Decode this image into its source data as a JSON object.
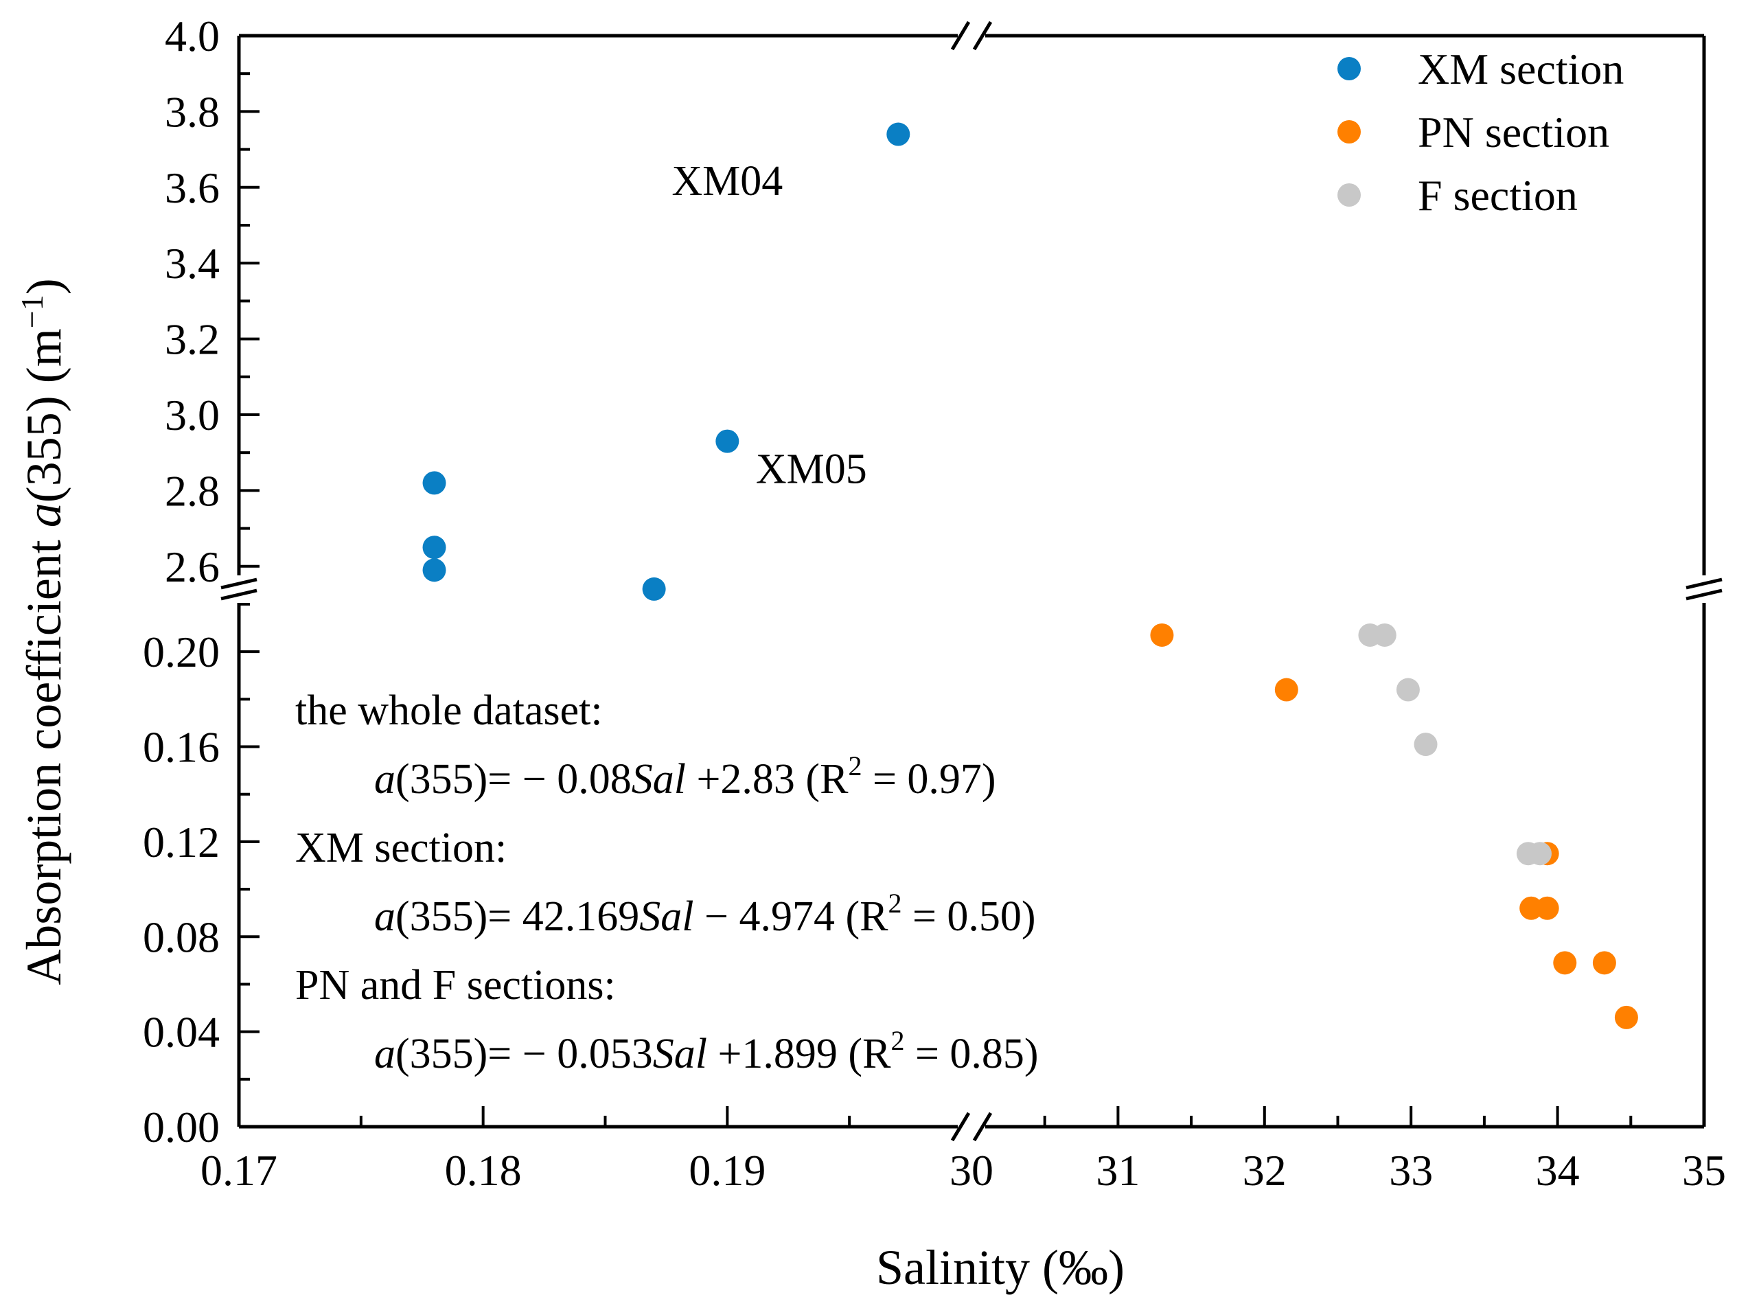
{
  "chart_data": {
    "type": "scatter",
    "title": "",
    "xlabel": "Salinity (‰)",
    "ylabel": {
      "prefix": "Absorption coefficient ",
      "italic": "a",
      "mid": "(355) (m",
      "sup": "−1",
      "suffix": ")"
    },
    "x_axis": {
      "broken": true,
      "segment_low": {
        "range": [
          0.17,
          0.2
        ],
        "ticks": [
          "0.17",
          "0.18",
          "0.19"
        ]
      },
      "segment_high": {
        "range": [
          30,
          35
        ],
        "ticks": [
          "30",
          "31",
          "32",
          "33",
          "34",
          "35"
        ]
      }
    },
    "y_axis": {
      "broken": true,
      "segment_low": {
        "range": [
          0.0,
          0.22
        ],
        "ticks": [
          "0.00",
          "0.04",
          "0.08",
          "0.12",
          "0.16",
          "0.20"
        ]
      },
      "segment_high": {
        "range": [
          2.5,
          4.0
        ],
        "ticks": [
          "2.6",
          "2.8",
          "3.0",
          "3.2",
          "3.4",
          "3.6",
          "3.8",
          "4.0"
        ]
      }
    },
    "series": [
      {
        "name": "XM section",
        "color": "#0a7fc4",
        "points": [
          {
            "x": 0.178,
            "y": 2.82
          },
          {
            "x": 0.178,
            "y": 2.65
          },
          {
            "x": 0.178,
            "y": 2.59
          },
          {
            "x": 0.187,
            "y": 2.54
          },
          {
            "x": 0.19,
            "y": 2.93
          },
          {
            "x": 0.197,
            "y": 3.74
          }
        ]
      },
      {
        "name": "PN section",
        "color": "#ff8000",
        "points": [
          {
            "x": 31.3,
            "y": 0.207
          },
          {
            "x": 32.15,
            "y": 0.184
          },
          {
            "x": 33.93,
            "y": 0.115
          },
          {
            "x": 33.82,
            "y": 0.092
          },
          {
            "x": 33.93,
            "y": 0.092
          },
          {
            "x": 34.05,
            "y": 0.069
          },
          {
            "x": 34.32,
            "y": 0.069
          },
          {
            "x": 34.47,
            "y": 0.046
          }
        ]
      },
      {
        "name": "F section",
        "color": "#c8c8c8",
        "points": [
          {
            "x": 32.72,
            "y": 0.207
          },
          {
            "x": 32.82,
            "y": 0.207
          },
          {
            "x": 32.98,
            "y": 0.184
          },
          {
            "x": 33.1,
            "y": 0.161
          },
          {
            "x": 33.8,
            "y": 0.115
          },
          {
            "x": 33.88,
            "y": 0.115
          }
        ]
      }
    ],
    "annotations": [
      {
        "text": "XM04",
        "x": 0.19,
        "y": 3.62
      },
      {
        "text": "XM05",
        "x": 0.191,
        "y": 2.86
      }
    ],
    "regressions": [
      {
        "heading": "the whole dataset:",
        "coef_text": "− 0.08",
        "const_text": "+2.83",
        "r2_text": "= 0.97)"
      },
      {
        "heading": "XM section:",
        "coef_text": "42.169",
        "const_text": "− 4.974",
        "r2_text": "= 0.50)"
      },
      {
        "heading": "PN and F sections:",
        "coef_text": "− 0.053",
        "const_text": "+1.899",
        "r2_text": "= 0.85)"
      }
    ],
    "legend": {
      "position": "top-right",
      "entries": [
        "XM section",
        "PN section",
        "F section"
      ]
    },
    "grid": false
  }
}
